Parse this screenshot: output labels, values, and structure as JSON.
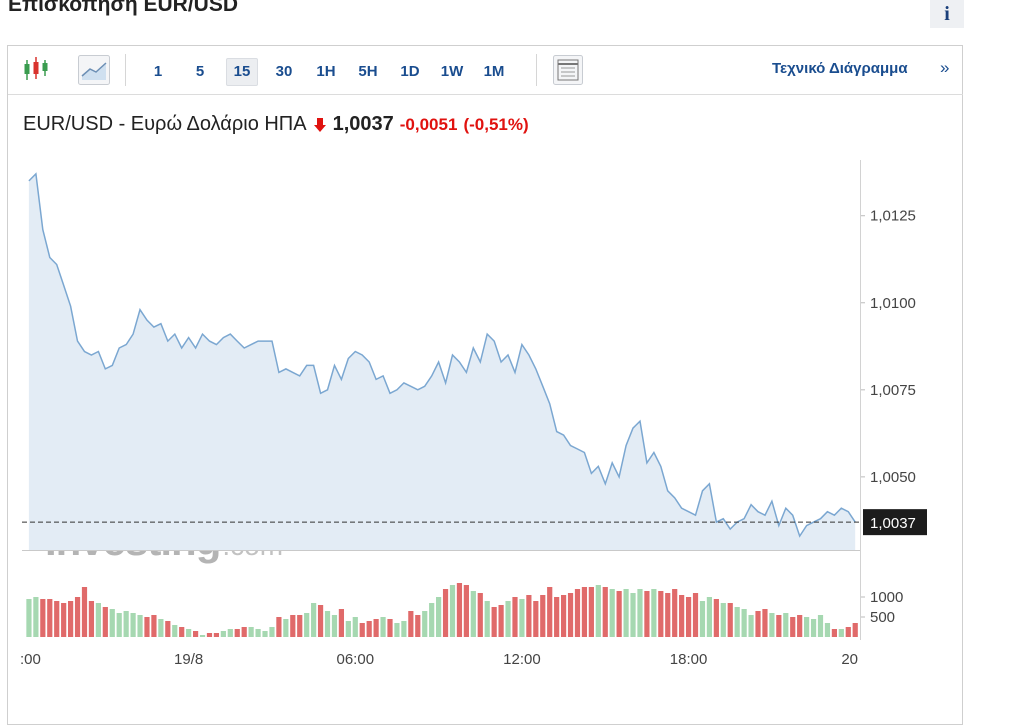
{
  "header": {
    "title": "Επισκόπηση EUR/USD",
    "info": "i"
  },
  "toolbar": {
    "intervals": [
      "1",
      "5",
      "15",
      "30",
      "1H",
      "5H",
      "1D",
      "1W",
      "1M"
    ],
    "active_interval": 2,
    "link": "Τεχνικό Διάγραμμα",
    "link_arrow": "»"
  },
  "quote": {
    "name": "EUR/USD - Ευρώ Δολάριο ΗΠΑ",
    "price": "1,0037",
    "change": "-0,0051",
    "change_pct": "(-0,51%)"
  },
  "watermark": {
    "brand": "Investing",
    "suffix": ".com"
  },
  "chart_data": [
    {
      "type": "area",
      "color": "#7ba7d1",
      "fill": "#e3ecf5",
      "xlim": [
        -6,
        24.1
      ],
      "ylim": [
        1.0029,
        1.0141
      ],
      "yticks": [
        {
          "value": 1.005,
          "label": "1,0050"
        },
        {
          "value": 1.0075,
          "label": "1,0075"
        },
        {
          "value": 1.01,
          "label": "1,0100"
        },
        {
          "value": 1.0125,
          "label": "1,0125"
        }
      ],
      "last_value": {
        "value": 1.0037,
        "label": "1,0037"
      },
      "grid": false,
      "x": [
        -5.75,
        -5.5,
        -5.25,
        -5,
        -4.75,
        -4.5,
        -4.25,
        -4,
        -3.75,
        -3.5,
        -3.25,
        -3,
        -2.75,
        -2.5,
        -2.25,
        -2,
        -1.75,
        -1.5,
        -1.25,
        -1,
        -0.75,
        -0.5,
        -0.25,
        0,
        0.25,
        0.5,
        0.75,
        1,
        1.25,
        1.5,
        1.75,
        2,
        2.25,
        2.5,
        2.75,
        3,
        3.25,
        3.5,
        3.75,
        4,
        4.25,
        4.5,
        4.75,
        5,
        5.25,
        5.5,
        5.75,
        6,
        6.25,
        6.5,
        6.75,
        7,
        7.25,
        7.5,
        7.75,
        8,
        8.25,
        8.5,
        8.75,
        9,
        9.25,
        9.5,
        9.75,
        10,
        10.25,
        10.5,
        10.75,
        11,
        11.25,
        11.5,
        11.75,
        12,
        12.25,
        12.5,
        12.75,
        13,
        13.25,
        13.5,
        13.75,
        14,
        14.25,
        14.5,
        14.75,
        15,
        15.25,
        15.5,
        15.75,
        16,
        16.25,
        16.5,
        16.75,
        17,
        17.25,
        17.5,
        17.75,
        18,
        18.25,
        18.5,
        18.75,
        19,
        19.25,
        19.5,
        19.75,
        20,
        20.25,
        20.5,
        20.75,
        21,
        21.25,
        21.5,
        21.75,
        22,
        22.25,
        22.5,
        22.75,
        23,
        23.25,
        23.5,
        23.75,
        24
      ],
      "values": [
        1.0135,
        1.0137,
        1.0121,
        1.0113,
        1.0111,
        1.0105,
        1.0099,
        1.0089,
        1.0086,
        1.0085,
        1.0086,
        1.0081,
        1.0082,
        1.0087,
        1.0088,
        1.0091,
        1.0098,
        1.0095,
        1.0093,
        1.0094,
        1.0089,
        1.0091,
        1.0087,
        1.009,
        1.0087,
        1.0091,
        1.0089,
        1.0088,
        1.009,
        1.0091,
        1.0089,
        1.0087,
        1.0088,
        1.0089,
        1.0089,
        1.0089,
        1.008,
        1.0081,
        1.008,
        1.0079,
        1.0082,
        1.0082,
        1.0074,
        1.0075,
        1.0082,
        1.0078,
        1.0084,
        1.0086,
        1.0085,
        1.0083,
        1.0078,
        1.0079,
        1.0074,
        1.0075,
        1.0077,
        1.0076,
        1.0075,
        1.0076,
        1.0079,
        1.0083,
        1.0077,
        1.0085,
        1.0083,
        1.008,
        1.0087,
        1.0083,
        1.0091,
        1.0089,
        1.0083,
        1.0085,
        1.008,
        1.0088,
        1.0085,
        1.0081,
        1.0076,
        1.0071,
        1.0063,
        1.0062,
        1.0059,
        1.0058,
        1.0057,
        1.0051,
        1.0053,
        1.0048,
        1.0054,
        1.005,
        1.0059,
        1.0064,
        1.0066,
        1.0054,
        1.0057,
        1.0053,
        1.0046,
        1.0044,
        1.0041,
        1.004,
        1.0039,
        1.0046,
        1.0048,
        1.0037,
        1.0038,
        1.0035,
        1.0037,
        1.0038,
        1.0042,
        1.004,
        1.0039,
        1.0043,
        1.0036,
        1.0041,
        1.0039,
        1.0033,
        1.0036,
        1.0037,
        1.0038,
        1.004,
        1.0039,
        1.0041,
        1.004,
        1.0037
      ]
    },
    {
      "type": "bar",
      "up_color": "#a6d8b1",
      "down_color": "#e06a6a",
      "xlim": [
        -6,
        24.1
      ],
      "ylim": [
        0,
        1550
      ],
      "yticks": [
        500,
        1000
      ],
      "xticks": [
        {
          "value": -6,
          "label": ":00"
        },
        {
          "value": 0,
          "label": "19/8"
        },
        {
          "value": 6,
          "label": "06:00"
        },
        {
          "value": 12,
          "label": "12:00"
        },
        {
          "value": 18,
          "label": "18:00"
        },
        {
          "value": 24,
          "label": "20"
        }
      ],
      "x": [
        -5.75,
        -5.5,
        -5.25,
        -5,
        -4.75,
        -4.5,
        -4.25,
        -4,
        -3.75,
        -3.5,
        -3.25,
        -3,
        -2.75,
        -2.5,
        -2.25,
        -2,
        -1.75,
        -1.5,
        -1.25,
        -1,
        -0.75,
        -0.5,
        -0.25,
        0,
        0.25,
        0.5,
        0.75,
        1,
        1.25,
        1.5,
        1.75,
        2,
        2.25,
        2.5,
        2.75,
        3,
        3.25,
        3.5,
        3.75,
        4,
        4.25,
        4.5,
        4.75,
        5,
        5.25,
        5.5,
        5.75,
        6,
        6.25,
        6.5,
        6.75,
        7,
        7.25,
        7.5,
        7.75,
        8,
        8.25,
        8.5,
        8.75,
        9,
        9.25,
        9.5,
        9.75,
        10,
        10.25,
        10.5,
        10.75,
        11,
        11.25,
        11.5,
        11.75,
        12,
        12.25,
        12.5,
        12.75,
        13,
        13.25,
        13.5,
        13.75,
        14,
        14.25,
        14.5,
        14.75,
        15,
        15.25,
        15.5,
        15.75,
        16,
        16.25,
        16.5,
        16.75,
        17,
        17.25,
        17.5,
        17.75,
        18,
        18.25,
        18.5,
        18.75,
        19,
        19.25,
        19.5,
        19.75,
        20,
        20.25,
        20.5,
        20.75,
        21,
        21.25,
        21.5,
        21.75,
        22,
        22.25,
        22.5,
        22.75,
        23,
        23.25,
        23.5,
        23.75,
        24
      ],
      "values": [
        950,
        1000,
        950,
        950,
        900,
        850,
        900,
        1000,
        1250,
        900,
        850,
        750,
        700,
        600,
        650,
        600,
        550,
        500,
        550,
        450,
        400,
        300,
        250,
        200,
        150,
        50,
        100,
        100,
        150,
        200,
        200,
        250,
        250,
        200,
        150,
        250,
        500,
        450,
        550,
        550,
        600,
        850,
        800,
        650,
        550,
        700,
        400,
        500,
        350,
        400,
        450,
        500,
        450,
        350,
        400,
        650,
        550,
        650,
        850,
        1000,
        1200,
        1300,
        1350,
        1300,
        1150,
        1100,
        900,
        750,
        800,
        900,
        1000,
        950,
        1050,
        900,
        1050,
        1250,
        1000,
        1050,
        1100,
        1200,
        1250,
        1250,
        1300,
        1250,
        1200,
        1150,
        1200,
        1100,
        1200,
        1150,
        1200,
        1150,
        1100,
        1200,
        1050,
        1000,
        1100,
        900,
        1000,
        950,
        850,
        850,
        750,
        700,
        550,
        650,
        700,
        600,
        550,
        600,
        500,
        550,
        500,
        450,
        550,
        350,
        200,
        200,
        250,
        350
      ]
    }
  ]
}
